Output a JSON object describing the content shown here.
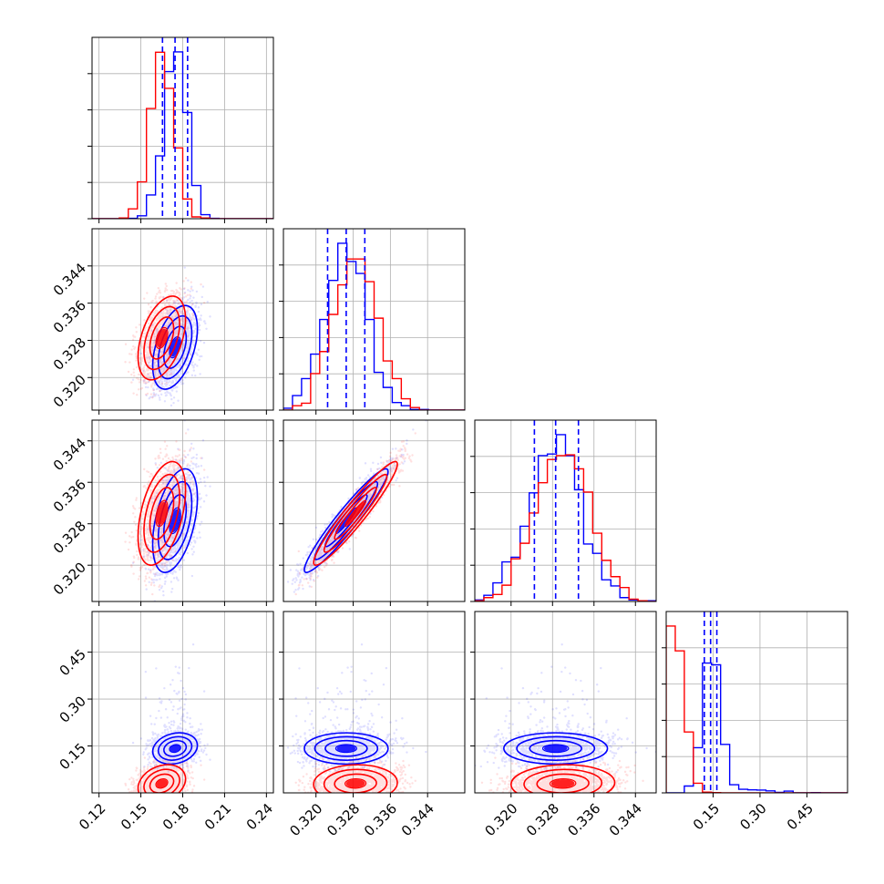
{
  "colors": {
    "series_a": "#0000ff",
    "series_b": "#ff0000",
    "grid": "#b0b0b0",
    "frame": "#000000"
  },
  "chart_data": {
    "type": "corner",
    "grid": true,
    "n_params": 4,
    "params": [
      {
        "range": [
          0.115,
          0.245
        ],
        "ticks": [
          0.12,
          0.15,
          0.18,
          0.21,
          0.24
        ],
        "tick_labels": [
          "0.12",
          "0.15",
          "0.18",
          "0.21",
          "0.24"
        ]
      },
      {
        "range": [
          0.313,
          0.352
        ],
        "ticks": [
          0.32,
          0.328,
          0.336,
          0.344
        ],
        "tick_labels": [
          "0.320",
          "0.328",
          "0.336",
          "0.344"
        ]
      },
      {
        "range": [
          0.313,
          0.348
        ],
        "ticks": [
          0.32,
          0.328,
          0.336,
          0.344
        ],
        "tick_labels": [
          "0.320",
          "0.328",
          "0.336",
          "0.344"
        ]
      },
      {
        "range": [
          0.0,
          0.58
        ],
        "ticks": [
          0.15,
          0.3,
          0.45
        ],
        "tick_labels": [
          "0.15",
          "0.30",
          "0.45"
        ]
      }
    ],
    "series": [
      {
        "color": "#0000ff",
        "means": [
          0.1745,
          0.3265,
          0.3286,
          0.142
        ],
        "sigmas": [
          0.008,
          0.0045,
          0.005,
          0.025
        ],
        "quantile_lines": [
          [
            0.1655,
            0.1745,
            0.1835
          ],
          [
            0.3225,
            0.3265,
            0.3305
          ],
          [
            0.3245,
            0.3286,
            0.333
          ],
          [
            0.122,
            0.142,
            0.162
          ]
        ]
      },
      {
        "color": "#ff0000",
        "means": [
          0.165,
          0.3285,
          0.33,
          0.03
        ],
        "sigmas": [
          0.0085,
          0.0045,
          0.005,
          0.03
        ]
      }
    ],
    "correlations": [
      {
        "pair": [
          1,
          0
        ],
        "series_a": 0.45,
        "series_b": 0.45
      },
      {
        "pair": [
          2,
          0
        ],
        "series_a": 0.45,
        "series_b": 0.45
      },
      {
        "pair": [
          2,
          1
        ],
        "series_a": 0.95,
        "series_b": 0.95
      },
      {
        "pair": [
          3,
          0
        ],
        "series_a": 0.2,
        "series_b": 0.25
      },
      {
        "pair": [
          3,
          1
        ],
        "series_a": 0.0,
        "series_b": 0.05
      },
      {
        "pair": [
          3,
          2
        ],
        "series_a": 0.0,
        "series_b": 0.05
      }
    ]
  }
}
